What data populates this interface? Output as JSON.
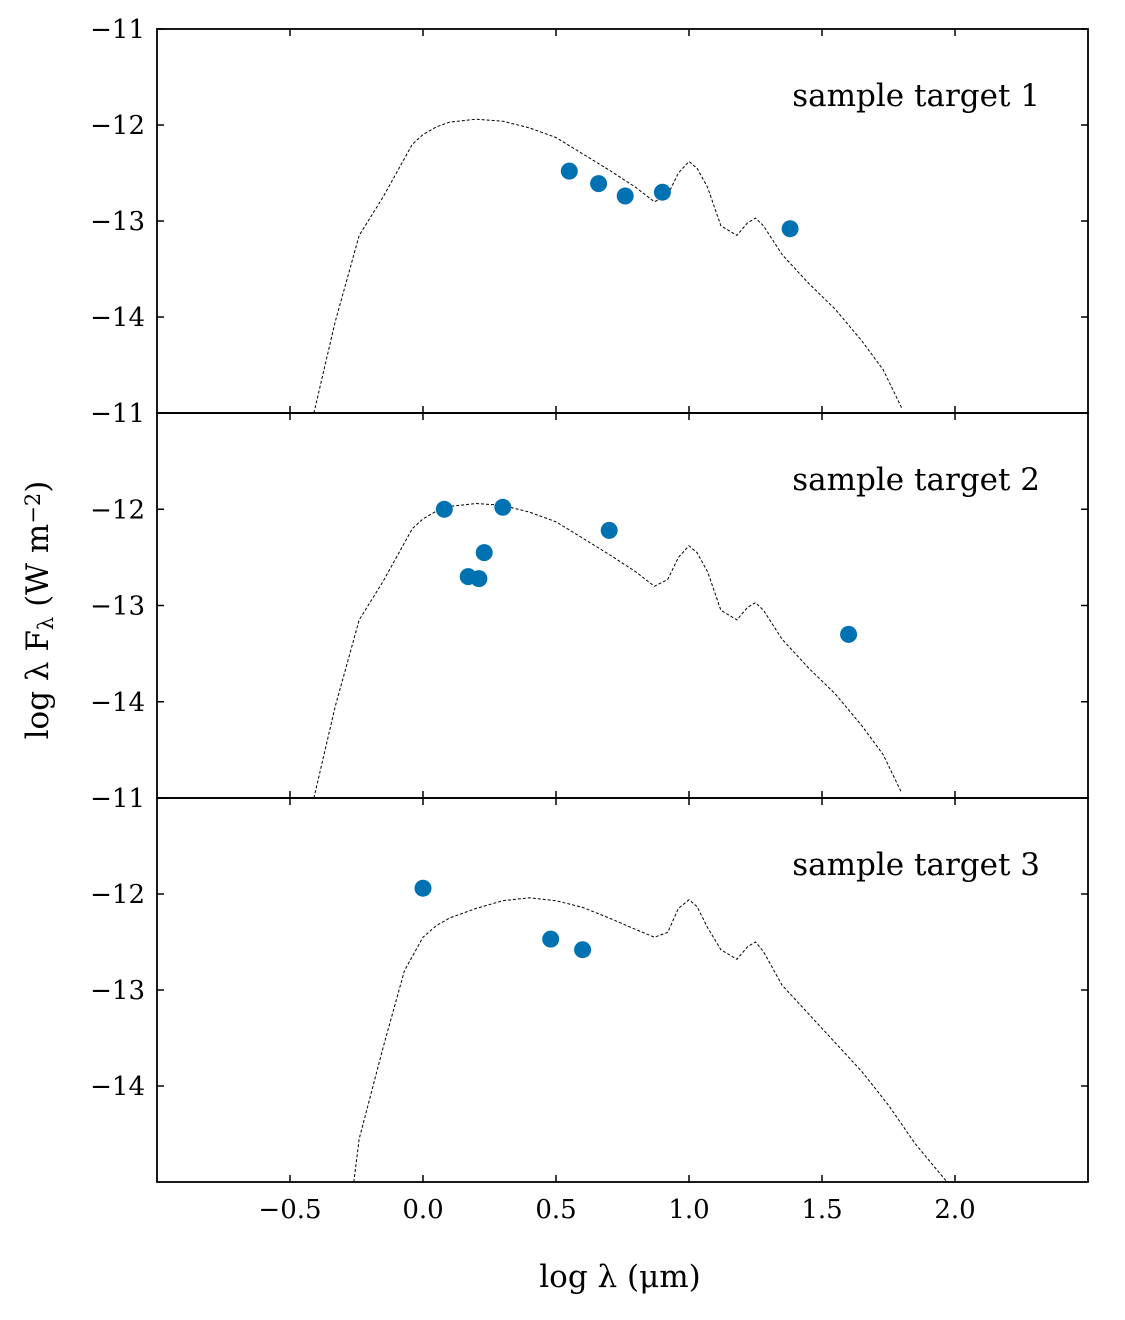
{
  "chart_data": {
    "type": "scatter",
    "layout": "3 vertically stacked panels, shared x axis",
    "xlabel": "log λ (μm)",
    "ylabel": "log λ F_λ (W m^-2)",
    "xlim": [
      -1.0,
      2.5
    ],
    "x_ticks": [
      -0.5,
      0.0,
      0.5,
      1.0,
      1.5,
      2.0
    ],
    "x_tick_labels": [
      "−0.5",
      "0.0",
      "0.5",
      "1.0",
      "1.5",
      "2.0"
    ],
    "point_color": "#0072b2",
    "model_line_color": "#000000",
    "model_line_style": "dashed",
    "panels": [
      {
        "label": "sample target 1",
        "ylim": [
          -15.0,
          -11.0
        ],
        "y_ticks": [
          -11,
          -12,
          -13,
          -14
        ],
        "y_tick_labels": [
          "−11",
          "−12",
          "−13",
          "−14"
        ],
        "points": [
          {
            "x": 0.55,
            "y": -12.48
          },
          {
            "x": 0.66,
            "y": -12.61
          },
          {
            "x": 0.76,
            "y": -12.74
          },
          {
            "x": 0.9,
            "y": -12.7
          },
          {
            "x": 1.38,
            "y": -13.08
          }
        ],
        "model": [
          {
            "x": -0.41,
            "y": -15.0
          },
          {
            "x": -0.33,
            "y": -14.05
          },
          {
            "x": -0.24,
            "y": -13.15
          },
          {
            "x": -0.15,
            "y": -12.75
          },
          {
            "x": -0.07,
            "y": -12.35
          },
          {
            "x": -0.04,
            "y": -12.2
          },
          {
            "x": 0.0,
            "y": -12.1
          },
          {
            "x": 0.05,
            "y": -12.02
          },
          {
            "x": 0.1,
            "y": -11.97
          },
          {
            "x": 0.2,
            "y": -11.94
          },
          {
            "x": 0.3,
            "y": -11.96
          },
          {
            "x": 0.4,
            "y": -12.03
          },
          {
            "x": 0.5,
            "y": -12.13
          },
          {
            "x": 0.6,
            "y": -12.3
          },
          {
            "x": 0.7,
            "y": -12.47
          },
          {
            "x": 0.8,
            "y": -12.65
          },
          {
            "x": 0.87,
            "y": -12.8
          },
          {
            "x": 0.92,
            "y": -12.73
          },
          {
            "x": 0.96,
            "y": -12.5
          },
          {
            "x": 1.0,
            "y": -12.38
          },
          {
            "x": 1.03,
            "y": -12.45
          },
          {
            "x": 1.07,
            "y": -12.65
          },
          {
            "x": 1.12,
            "y": -13.05
          },
          {
            "x": 1.18,
            "y": -13.15
          },
          {
            "x": 1.22,
            "y": -13.02
          },
          {
            "x": 1.25,
            "y": -12.97
          },
          {
            "x": 1.28,
            "y": -13.05
          },
          {
            "x": 1.35,
            "y": -13.35
          },
          {
            "x": 1.45,
            "y": -13.65
          },
          {
            "x": 1.55,
            "y": -13.92
          },
          {
            "x": 1.65,
            "y": -14.25
          },
          {
            "x": 1.73,
            "y": -14.55
          },
          {
            "x": 1.8,
            "y": -14.95
          }
        ]
      },
      {
        "label": "sample target 2",
        "ylim": [
          -15.0,
          -11.0
        ],
        "y_ticks": [
          -11,
          -12,
          -13,
          -14
        ],
        "y_tick_labels": [
          "−11",
          "−12",
          "−13",
          "−14"
        ],
        "points": [
          {
            "x": 0.08,
            "y": -12.0
          },
          {
            "x": 0.3,
            "y": -11.98
          },
          {
            "x": 0.7,
            "y": -12.22
          },
          {
            "x": 0.23,
            "y": -12.45
          },
          {
            "x": 0.17,
            "y": -12.7
          },
          {
            "x": 0.21,
            "y": -12.72
          },
          {
            "x": 1.6,
            "y": -13.3
          }
        ],
        "model": [
          {
            "x": -0.41,
            "y": -15.0
          },
          {
            "x": -0.33,
            "y": -14.05
          },
          {
            "x": -0.24,
            "y": -13.15
          },
          {
            "x": -0.15,
            "y": -12.75
          },
          {
            "x": -0.07,
            "y": -12.35
          },
          {
            "x": -0.04,
            "y": -12.2
          },
          {
            "x": 0.0,
            "y": -12.1
          },
          {
            "x": 0.05,
            "y": -12.02
          },
          {
            "x": 0.1,
            "y": -11.97
          },
          {
            "x": 0.2,
            "y": -11.94
          },
          {
            "x": 0.3,
            "y": -11.96
          },
          {
            "x": 0.4,
            "y": -12.03
          },
          {
            "x": 0.5,
            "y": -12.13
          },
          {
            "x": 0.6,
            "y": -12.3
          },
          {
            "x": 0.7,
            "y": -12.47
          },
          {
            "x": 0.8,
            "y": -12.65
          },
          {
            "x": 0.87,
            "y": -12.8
          },
          {
            "x": 0.92,
            "y": -12.73
          },
          {
            "x": 0.96,
            "y": -12.5
          },
          {
            "x": 1.0,
            "y": -12.38
          },
          {
            "x": 1.03,
            "y": -12.45
          },
          {
            "x": 1.07,
            "y": -12.65
          },
          {
            "x": 1.12,
            "y": -13.05
          },
          {
            "x": 1.18,
            "y": -13.15
          },
          {
            "x": 1.22,
            "y": -13.02
          },
          {
            "x": 1.25,
            "y": -12.97
          },
          {
            "x": 1.28,
            "y": -13.05
          },
          {
            "x": 1.35,
            "y": -13.35
          },
          {
            "x": 1.45,
            "y": -13.65
          },
          {
            "x": 1.55,
            "y": -13.92
          },
          {
            "x": 1.65,
            "y": -14.25
          },
          {
            "x": 1.73,
            "y": -14.55
          },
          {
            "x": 1.8,
            "y": -14.95
          }
        ]
      },
      {
        "label": "sample target 3",
        "ylim": [
          -15.0,
          -11.0
        ],
        "y_ticks": [
          -11,
          -12,
          -13,
          -14
        ],
        "y_tick_labels": [
          "−11",
          "−12",
          "−13",
          "−14"
        ],
        "points": [
          {
            "x": 0.0,
            "y": -11.94
          },
          {
            "x": 0.48,
            "y": -12.47
          },
          {
            "x": 0.6,
            "y": -12.58
          }
        ],
        "model": [
          {
            "x": -0.26,
            "y": -15.0
          },
          {
            "x": -0.24,
            "y": -14.55
          },
          {
            "x": -0.15,
            "y": -13.6
          },
          {
            "x": -0.07,
            "y": -12.8
          },
          {
            "x": -0.03,
            "y": -12.6
          },
          {
            "x": 0.0,
            "y": -12.45
          },
          {
            "x": 0.05,
            "y": -12.33
          },
          {
            "x": 0.1,
            "y": -12.25
          },
          {
            "x": 0.2,
            "y": -12.15
          },
          {
            "x": 0.3,
            "y": -12.07
          },
          {
            "x": 0.4,
            "y": -12.04
          },
          {
            "x": 0.5,
            "y": -12.07
          },
          {
            "x": 0.6,
            "y": -12.14
          },
          {
            "x": 0.7,
            "y": -12.25
          },
          {
            "x": 0.8,
            "y": -12.37
          },
          {
            "x": 0.87,
            "y": -12.45
          },
          {
            "x": 0.92,
            "y": -12.4
          },
          {
            "x": 0.96,
            "y": -12.15
          },
          {
            "x": 1.0,
            "y": -12.06
          },
          {
            "x": 1.03,
            "y": -12.13
          },
          {
            "x": 1.07,
            "y": -12.35
          },
          {
            "x": 1.12,
            "y": -12.58
          },
          {
            "x": 1.18,
            "y": -12.68
          },
          {
            "x": 1.22,
            "y": -12.55
          },
          {
            "x": 1.25,
            "y": -12.5
          },
          {
            "x": 1.28,
            "y": -12.6
          },
          {
            "x": 1.35,
            "y": -12.95
          },
          {
            "x": 1.45,
            "y": -13.25
          },
          {
            "x": 1.55,
            "y": -13.55
          },
          {
            "x": 1.65,
            "y": -13.85
          },
          {
            "x": 1.75,
            "y": -14.2
          },
          {
            "x": 1.85,
            "y": -14.6
          },
          {
            "x": 1.97,
            "y": -15.0
          }
        ]
      }
    ]
  }
}
